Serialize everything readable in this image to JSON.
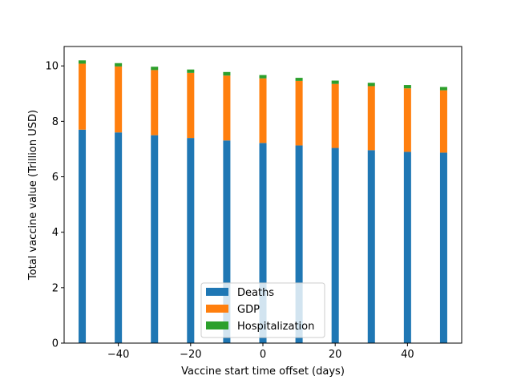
{
  "chart_data": {
    "type": "bar",
    "stacked": true,
    "title": "",
    "xlabel": "Vaccine start time offset (days)",
    "ylabel": "Total vaccine value (Trillion USD)",
    "x": [
      -50,
      -40,
      -30,
      -20,
      -10,
      0,
      10,
      20,
      30,
      40,
      50
    ],
    "xlim": [
      -55,
      55
    ],
    "ylim": [
      0,
      10.7
    ],
    "xticks": [
      -40,
      -20,
      0,
      20,
      40
    ],
    "xtick_labels": [
      "−40",
      "−20",
      "0",
      "20",
      "40"
    ],
    "yticks": [
      0,
      2,
      4,
      6,
      8,
      10
    ],
    "ytick_labels": [
      "0",
      "2",
      "4",
      "6",
      "8",
      "10"
    ],
    "bar_width": 2,
    "series": [
      {
        "name": "Deaths",
        "color": "#1f77b4",
        "values": [
          7.7,
          7.6,
          7.5,
          7.4,
          7.31,
          7.22,
          7.13,
          7.04,
          6.96,
          6.9,
          6.87
        ]
      },
      {
        "name": "GDP",
        "color": "#ff7f0e",
        "values": [
          2.38,
          2.38,
          2.35,
          2.35,
          2.34,
          2.33,
          2.33,
          2.31,
          2.31,
          2.29,
          2.25
        ]
      },
      {
        "name": "Hospitalization",
        "color": "#2ca02c",
        "values": [
          0.12,
          0.12,
          0.12,
          0.12,
          0.13,
          0.12,
          0.11,
          0.12,
          0.12,
          0.12,
          0.12
        ]
      }
    ],
    "legend": {
      "placement": "lower center",
      "entries": [
        "Deaths",
        "GDP",
        "Hospitalization"
      ]
    },
    "grid": false
  }
}
